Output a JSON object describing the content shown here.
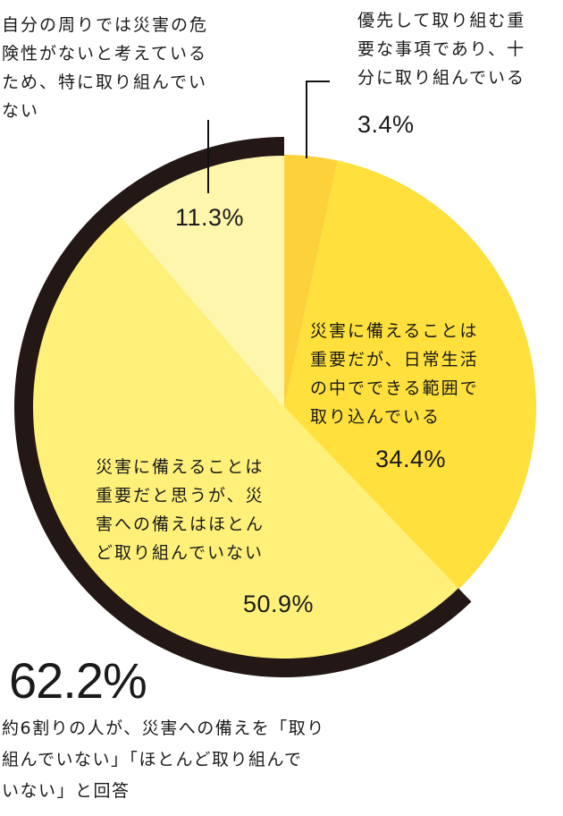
{
  "chart_data": {
    "type": "pie",
    "title": "",
    "start_angle": "top, clockwise",
    "slices": [
      {
        "label": "優先して取り組む重要な事項であり、十分に取り組んでいる",
        "value": 3.4,
        "color": "#FDD13A"
      },
      {
        "label": "災害に備えることは重要だが、日常生活の中でできる範囲で取り込んでいる",
        "value": 34.4,
        "color": "#FFE03C"
      },
      {
        "label": "災害に備えることは重要だと思うが、災害への備えはほとんど取り組んでいない",
        "value": 50.9,
        "color": "#FFF07A"
      },
      {
        "label": "自分の周りでは災害の危険性がないと考えているため、特に取り組んでいない",
        "value": 11.3,
        "color": "#FFF6AE"
      }
    ],
    "highlight_arc": {
      "covers": [
        "50.9%",
        "11.3%"
      ],
      "color": "#231815",
      "total": "62.2%"
    },
    "annotation": "約6割りの人が、災害への備えを「取り組んでいない」「ほとんど取り組んでいない」と回答"
  },
  "labels": {
    "s1": {
      "lines": [
        "優先して取り組む重",
        "要な事項であり、十",
        "分に取り組んでいる"
      ],
      "pct": "3.4%"
    },
    "s2": {
      "lines": [
        "災害に備えることは",
        "重要だが、日常生活",
        "の中でできる範囲で",
        "取り込んでいる"
      ],
      "pct": "34.4%"
    },
    "s3": {
      "lines": [
        "災害に備えることは",
        "重要だと思うが、災",
        "害への備えはほとん",
        "ど取り組んでいない"
      ],
      "pct": "50.9%"
    },
    "s4": {
      "lines": [
        "自分の周りでは災害の危",
        "険性がないと考えている",
        "ため、特に取り組んでい",
        "ない"
      ],
      "pct": "11.3%"
    }
  },
  "summary": {
    "big_value": "62.2%",
    "lines": [
      "約6割りの人が、災害への備えを「取り",
      "組んでいない」「ほとんど取り組んで",
      "いない」と回答"
    ]
  }
}
